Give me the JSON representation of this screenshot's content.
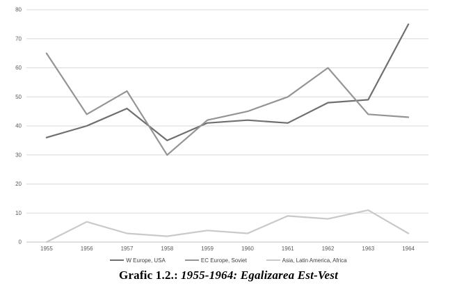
{
  "chart_data": {
    "type": "line",
    "title": "Grafic 1.2.: 1955-1964: Egalizarea Est-Vest",
    "x": [
      "1955",
      "1956",
      "1957",
      "1958",
      "1959",
      "1960",
      "1961",
      "1962",
      "1963",
      "1964"
    ],
    "series": [
      {
        "name": "W Europe, USA",
        "color": "#6f6f6f",
        "values": [
          36,
          40,
          46,
          35,
          41,
          42,
          41,
          48,
          49,
          75
        ]
      },
      {
        "name": "EC Europe, Soviet",
        "color": "#949494",
        "values": [
          65,
          44,
          52,
          30,
          42,
          45,
          50,
          60,
          44,
          43
        ]
      },
      {
        "name": "Asia, Latin America, Africa",
        "color": "#c9c9c9",
        "values": [
          0,
          7,
          3,
          2,
          4,
          3,
          9,
          8,
          11,
          3
        ]
      }
    ],
    "xlabel": "",
    "ylabel": "",
    "ylim": [
      0,
      80
    ],
    "ytick_step": 10,
    "grid": true,
    "legend_position": "bottom",
    "colors": {
      "gridline": "#d9d9d9",
      "axis_line": "#bfbfbf",
      "tick_text": "#595959"
    }
  },
  "caption": {
    "prefix": "Grafic 1.2.:",
    "emphasis": "1955-1964: Egalizarea Est-Vest"
  }
}
